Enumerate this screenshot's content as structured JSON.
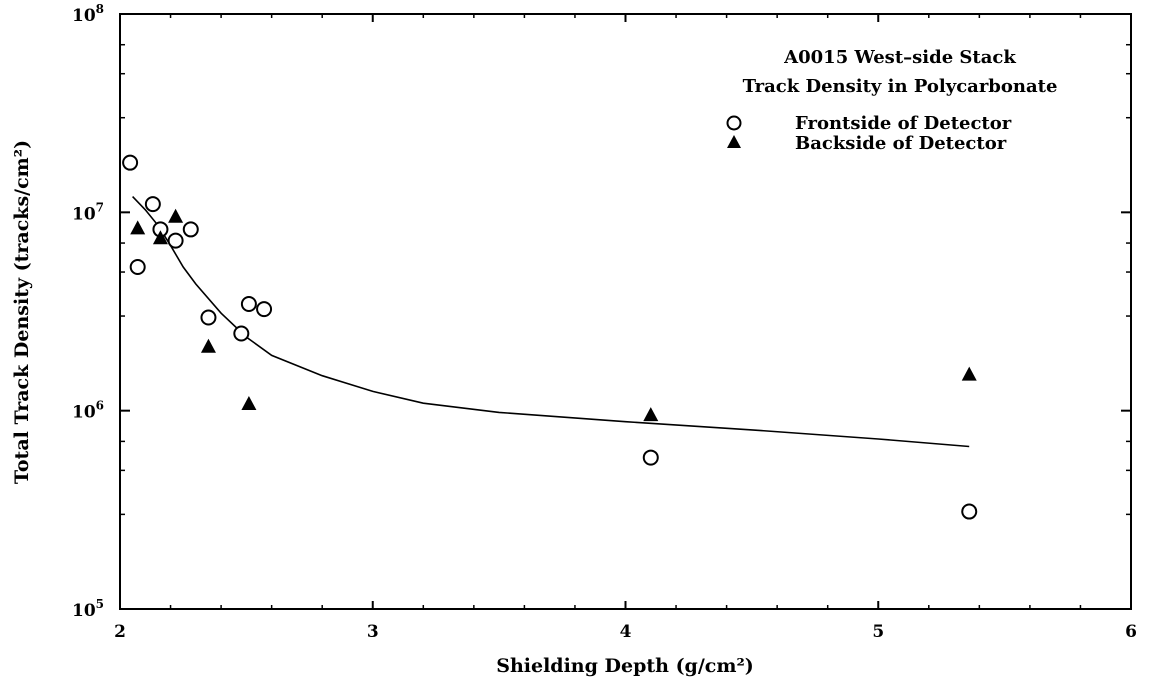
{
  "chart_data": {
    "type": "scatter",
    "title_lines": [
      "A0015 West–side Stack",
      "Track Density in Polycarbonate"
    ],
    "xlabel": "Shielding Depth (g/cm²)",
    "ylabel": "Total Track Density (tracks/cm²)",
    "xlim": [
      2,
      6
    ],
    "ylim": [
      100000,
      100000000
    ],
    "yscale": "log",
    "xticks": [
      2,
      3,
      4,
      5,
      6
    ],
    "xtick_labels": [
      "2",
      "3",
      "4",
      "5",
      "6"
    ],
    "yticks": [
      100000,
      1000000,
      10000000,
      100000000
    ],
    "ytick_labels": [
      {
        "base": "10",
        "exp": "5"
      },
      {
        "base": "10",
        "exp": "6"
      },
      {
        "base": "10",
        "exp": "7"
      },
      {
        "base": "10",
        "exp": "8"
      }
    ],
    "grid": false,
    "legend_position": "top-right",
    "series": [
      {
        "name": "Frontside of Detector",
        "marker": "open-circle",
        "points": [
          {
            "x": 2.04,
            "y": 17800000
          },
          {
            "x": 2.07,
            "y": 5300000
          },
          {
            "x": 2.13,
            "y": 11000000
          },
          {
            "x": 2.16,
            "y": 8200000
          },
          {
            "x": 2.22,
            "y": 7200000
          },
          {
            "x": 2.28,
            "y": 8200000
          },
          {
            "x": 2.35,
            "y": 2950000
          },
          {
            "x": 2.48,
            "y": 2450000
          },
          {
            "x": 2.51,
            "y": 3450000
          },
          {
            "x": 2.57,
            "y": 3250000
          },
          {
            "x": 4.1,
            "y": 580000
          },
          {
            "x": 5.36,
            "y": 310000
          }
        ]
      },
      {
        "name": "Backside of Detector",
        "marker": "filled-triangle",
        "points": [
          {
            "x": 2.07,
            "y": 8300000
          },
          {
            "x": 2.16,
            "y": 7400000
          },
          {
            "x": 2.22,
            "y": 9500000
          },
          {
            "x": 2.35,
            "y": 2100000
          },
          {
            "x": 2.51,
            "y": 1080000
          },
          {
            "x": 4.1,
            "y": 950000
          },
          {
            "x": 5.36,
            "y": 1520000
          }
        ]
      }
    ],
    "fit_curve": {
      "style": "solid-line",
      "points": [
        {
          "x": 2.05,
          "y": 12000000
        },
        {
          "x": 2.1,
          "y": 10300000
        },
        {
          "x": 2.15,
          "y": 8600000
        },
        {
          "x": 2.2,
          "y": 6800000
        },
        {
          "x": 2.25,
          "y": 5300000
        },
        {
          "x": 2.3,
          "y": 4350000
        },
        {
          "x": 2.4,
          "y": 3100000
        },
        {
          "x": 2.5,
          "y": 2350000
        },
        {
          "x": 2.6,
          "y": 1900000
        },
        {
          "x": 2.8,
          "y": 1500000
        },
        {
          "x": 3.0,
          "y": 1250000
        },
        {
          "x": 3.2,
          "y": 1090000
        },
        {
          "x": 3.5,
          "y": 980000
        },
        {
          "x": 4.0,
          "y": 880000
        },
        {
          "x": 4.5,
          "y": 800000
        },
        {
          "x": 5.0,
          "y": 720000
        },
        {
          "x": 5.36,
          "y": 660000
        }
      ]
    }
  }
}
